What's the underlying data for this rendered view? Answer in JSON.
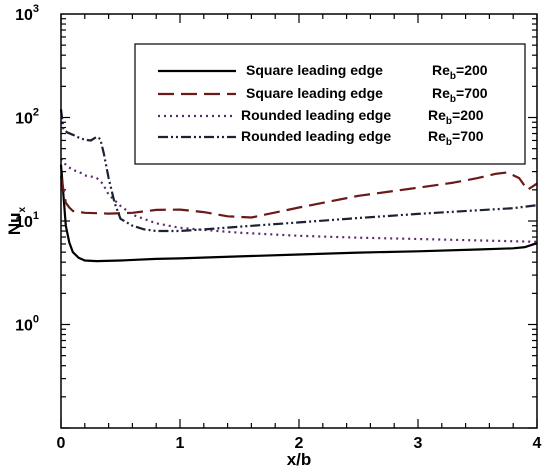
{
  "chart_data": {
    "type": "line",
    "title": "",
    "xlabel": "x/b",
    "ylabel": {
      "main": "Nu",
      "sub": "x"
    },
    "xlim": [
      0,
      4
    ],
    "ylim": [
      0.1,
      1000
    ],
    "yscale": "log",
    "grid": false,
    "legend_position": "top-right",
    "x_ticks": [
      {
        "value": 0,
        "label": "0"
      },
      {
        "value": 1,
        "label": "1"
      },
      {
        "value": 2,
        "label": "2"
      },
      {
        "value": 3,
        "label": "3"
      },
      {
        "value": 4,
        "label": "4"
      }
    ],
    "y_ticks": [
      {
        "value": 1,
        "base": "10",
        "exp": "0"
      },
      {
        "value": 10,
        "base": "10",
        "exp": "1"
      },
      {
        "value": 100,
        "base": "10",
        "exp": "2"
      },
      {
        "value": 1000,
        "base": "10",
        "exp": "3"
      }
    ],
    "series": [
      {
        "name": "Square leading edge",
        "re_label": {
          "main": "Re",
          "sub": "b",
          "value": "=200"
        },
        "color": "#000000",
        "dash": "solid",
        "x": [
          0,
          0.02,
          0.04,
          0.07,
          0.1,
          0.15,
          0.2,
          0.3,
          0.5,
          0.8,
          1.0,
          1.5,
          2.0,
          2.5,
          3.0,
          3.5,
          3.8,
          3.9,
          4.0
        ],
        "y": [
          35,
          18,
          9,
          6.2,
          5.0,
          4.4,
          4.15,
          4.1,
          4.15,
          4.3,
          4.35,
          4.55,
          4.75,
          4.95,
          5.1,
          5.3,
          5.45,
          5.6,
          6.1
        ]
      },
      {
        "name": "Square leading edge",
        "re_label": {
          "main": "Re",
          "sub": "b",
          "value": "=700"
        },
        "color": "#6b1a1a",
        "dash": "long-dash",
        "x": [
          0,
          0.04,
          0.07,
          0.1,
          0.2,
          0.4,
          0.6,
          0.8,
          1.0,
          1.2,
          1.4,
          1.6,
          2.0,
          2.5,
          3.0,
          3.3,
          3.5,
          3.65,
          3.75,
          3.85,
          3.92,
          4.0
        ],
        "y": [
          27,
          15,
          13.5,
          12.5,
          12.0,
          11.8,
          12.0,
          12.8,
          12.9,
          12.2,
          11.1,
          10.8,
          13.5,
          17.5,
          21,
          23.5,
          26,
          28.5,
          29.5,
          26,
          20,
          23
        ]
      },
      {
        "name": "Rounded leading edge",
        "re_label": {
          "main": "Re",
          "sub": "b",
          "value": "=200"
        },
        "color": "#5b2a6b",
        "dash": "dotted",
        "x": [
          0,
          0.02,
          0.05,
          0.1,
          0.15,
          0.2,
          0.25,
          0.3,
          0.35,
          0.4,
          0.5,
          0.6,
          0.8,
          1.0,
          1.2,
          1.5,
          2.0,
          2.5,
          3.0,
          3.5,
          4.0
        ],
        "y": [
          40,
          37,
          34,
          31,
          30,
          27.5,
          27,
          26,
          23,
          18,
          14,
          11.5,
          9.5,
          8.6,
          8.2,
          7.7,
          7.2,
          6.9,
          6.7,
          6.5,
          6.3
        ]
      },
      {
        "name": "Rounded leading edge",
        "re_label": {
          "main": "Re",
          "sub": "b",
          "value": "=700"
        },
        "color": "#1c2233",
        "dash": "dash-dot-dot",
        "x": [
          0,
          0.02,
          0.05,
          0.1,
          0.15,
          0.2,
          0.25,
          0.3,
          0.33,
          0.36,
          0.4,
          0.45,
          0.5,
          0.6,
          0.7,
          0.8,
          1.0,
          1.2,
          1.5,
          2.0,
          2.5,
          3.0,
          3.5,
          3.8,
          4.0
        ],
        "y": [
          120,
          78,
          72,
          68,
          64,
          61,
          60,
          65,
          62,
          45,
          26,
          15,
          10.5,
          9.0,
          8.3,
          8.0,
          8.0,
          8.3,
          8.8,
          9.7,
          10.7,
          11.7,
          12.7,
          13.3,
          14.2
        ]
      }
    ]
  }
}
